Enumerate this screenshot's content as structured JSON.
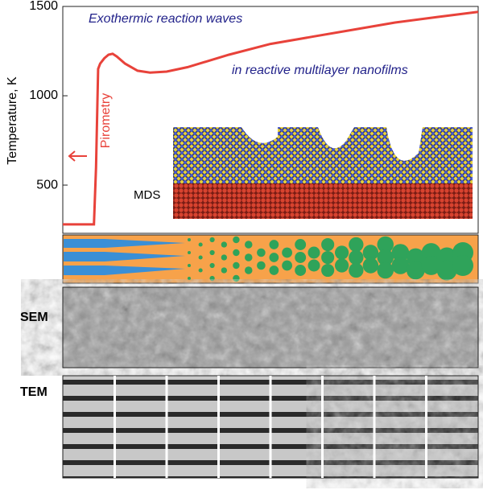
{
  "chart_data": {
    "type": "line",
    "title": "Exothermic reaction waves",
    "subtitle": "in reactive multilayer nanofilms",
    "y_label": "Temperature, K",
    "annotations": [
      "Pirometry",
      "MDS",
      "SEM",
      "TEM"
    ],
    "x": [
      0,
      7.5,
      8,
      8.5,
      9,
      10,
      11,
      12,
      13,
      15,
      18,
      21,
      25,
      30,
      40,
      50,
      60,
      70,
      80,
      90,
      100
    ],
    "xlim": [
      0,
      100
    ],
    "series": [
      {
        "name": "Pirometry",
        "color": "#e8423a",
        "values": [
          280,
          280,
          600,
          1150,
          1180,
          1210,
          1230,
          1235,
          1220,
          1180,
          1140,
          1130,
          1135,
          1160,
          1230,
          1290,
          1330,
          1370,
          1410,
          1440,
          1470
        ]
      }
    ],
    "ylim": [
      230,
      1500
    ],
    "yticks": [
      500,
      1000,
      1500
    ]
  }
}
